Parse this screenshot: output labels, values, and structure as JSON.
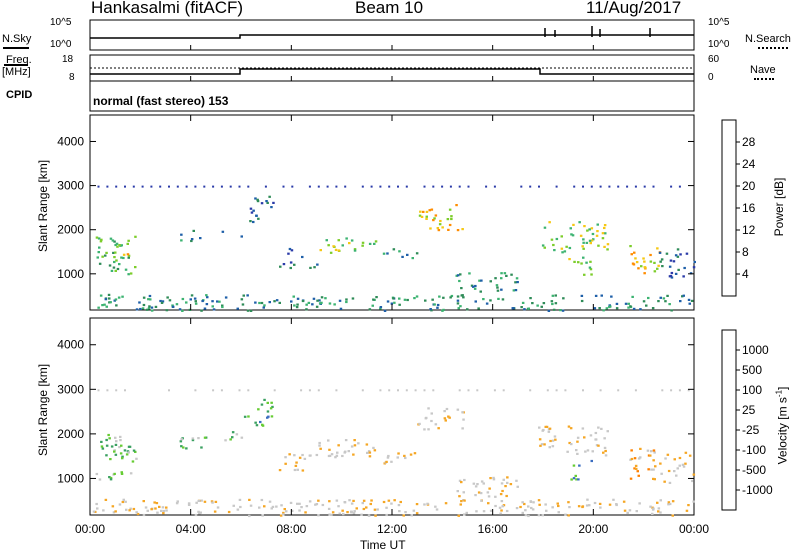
{
  "header": {
    "station": "Hankasalmi (fitACF)",
    "beam": "Beam 10",
    "date": "11/Aug/2017"
  },
  "top_panels": {
    "nsky_label": "N.Sky",
    "nsky_axis": [
      "10^5",
      "10^0"
    ],
    "nsearch_label": "N.Search",
    "nsearch_axis": [
      "10^5",
      "10^0"
    ],
    "freq_label": "Freq.",
    "freq_unit": "[MHz]",
    "freq_axis": [
      "18",
      "8"
    ],
    "nave_label": "Nave",
    "nave_axis": [
      "60",
      "0"
    ],
    "cpid_label": "CPID",
    "cpid_text": "normal (fast stereo) 153"
  },
  "chart_data": [
    {
      "type": "heatmap",
      "title": "",
      "xlabel": "Time UT",
      "ylabel": "Slant Range [km]",
      "x_ticks": [
        "00:00",
        "04:00",
        "08:00",
        "12:00",
        "16:00",
        "20:00",
        "00:00"
      ],
      "xlim_hours": [
        0,
        24
      ],
      "ylim": [
        180,
        4600
      ],
      "y_ticks": [
        1000,
        2000,
        3000,
        4000
      ],
      "colorbar": {
        "label": "Power [dB]",
        "ticks": [
          "28",
          "24",
          "20",
          "16",
          "12",
          "8",
          "4"
        ],
        "colors": [
          "#ff0000",
          "#e8500a",
          "#ff8c00",
          "#f5c814",
          "#7ccd2a",
          "#3cb371",
          "#2e8b57",
          "#1e5fa8",
          "#2a3aa8",
          "#0000ff"
        ]
      },
      "regions": [
        {
          "t0": 0.2,
          "t1": 1.8,
          "r0": 1000,
          "r1": 1900,
          "level": 4
        },
        {
          "t0": 1.0,
          "t1": 1.5,
          "r0": 1450,
          "r1": 1750,
          "level": 6
        },
        {
          "t0": 3.5,
          "t1": 4.6,
          "r0": 1750,
          "r1": 2000,
          "level": 3
        },
        {
          "t0": 5.2,
          "t1": 6.0,
          "r0": 1800,
          "r1": 2000,
          "level": 3
        },
        {
          "t0": 6.1,
          "t1": 7.3,
          "r0": 2200,
          "r1": 2800,
          "level": 2
        },
        {
          "t0": 7.5,
          "t1": 9.0,
          "r0": 1150,
          "r1": 1600,
          "level": 2
        },
        {
          "t0": 9.0,
          "t1": 11.4,
          "r0": 1500,
          "r1": 1850,
          "level": 5
        },
        {
          "t0": 11.5,
          "t1": 13.0,
          "r0": 1350,
          "r1": 1600,
          "level": 3
        },
        {
          "t0": 13.0,
          "t1": 14.8,
          "r0": 2000,
          "r1": 2600,
          "level": 6
        },
        {
          "t0": 14.5,
          "t1": 17.0,
          "r0": 600,
          "r1": 1050,
          "level": 3
        },
        {
          "t0": 17.8,
          "t1": 20.6,
          "r0": 1500,
          "r1": 2200,
          "level": 5
        },
        {
          "t0": 19.0,
          "t1": 19.9,
          "r0": 1000,
          "r1": 1450,
          "level": 5
        },
        {
          "t0": 21.4,
          "t1": 22.6,
          "r0": 1000,
          "r1": 1700,
          "level": 6
        },
        {
          "t0": 22.6,
          "t1": 24.0,
          "r0": 900,
          "r1": 1600,
          "level": 2
        },
        {
          "t0": 0.0,
          "t1": 24.0,
          "r0": 180,
          "r1": 550,
          "level": 3
        }
      ]
    },
    {
      "type": "heatmap",
      "title": "",
      "xlabel": "Time UT",
      "ylabel": "Slant Range [km]",
      "x_ticks": [
        "00:00",
        "04:00",
        "08:00",
        "12:00",
        "16:00",
        "20:00",
        "00:00"
      ],
      "xlim_hours": [
        0,
        24
      ],
      "ylim": [
        180,
        4600
      ],
      "y_ticks": [
        1000,
        2000,
        3000,
        4000
      ],
      "colorbar": {
        "label": "Velocity [m s",
        "label_superscript": "-1",
        "ticks": [
          "1000",
          "500",
          "100",
          "25",
          "-25",
          "-100",
          "-500",
          "-1000"
        ],
        "colors": [
          "#1e3cc8",
          "#3a6cc0",
          "#3aa060",
          "#66cc33",
          "#c8c8c8",
          "#c8c8c8",
          "#f5a623",
          "#ff8000",
          "#ff4000",
          "#e00000"
        ]
      },
      "regions": [
        {
          "t0": 0.2,
          "t1": 1.8,
          "r0": 1000,
          "r1": 2000,
          "level": 6
        },
        {
          "t0": 3.5,
          "t1": 4.6,
          "r0": 1650,
          "r1": 2050,
          "level": 6
        },
        {
          "t0": 5.2,
          "t1": 6.0,
          "r0": 1850,
          "r1": 2100,
          "level": 6
        },
        {
          "t0": 6.1,
          "t1": 7.3,
          "r0": 2200,
          "r1": 2800,
          "level": 7
        },
        {
          "t0": 7.5,
          "t1": 9.0,
          "r0": 1200,
          "r1": 1600,
          "level": 4
        },
        {
          "t0": 9.0,
          "t1": 11.4,
          "r0": 1500,
          "r1": 1900,
          "level": 4
        },
        {
          "t0": 11.5,
          "t1": 13.0,
          "r0": 1350,
          "r1": 1600,
          "level": 4
        },
        {
          "t0": 13.0,
          "t1": 14.8,
          "r0": 2100,
          "r1": 2600,
          "level": 4
        },
        {
          "t0": 14.5,
          "t1": 17.0,
          "r0": 600,
          "r1": 1050,
          "level": 4
        },
        {
          "t0": 17.8,
          "t1": 20.6,
          "r0": 1500,
          "r1": 2200,
          "level": 4
        },
        {
          "t0": 19.0,
          "t1": 19.9,
          "r0": 1000,
          "r1": 1450,
          "level": 7
        },
        {
          "t0": 21.4,
          "t1": 22.6,
          "r0": 1000,
          "r1": 1700,
          "level": 3
        },
        {
          "t0": 22.6,
          "t1": 24.0,
          "r0": 900,
          "r1": 1600,
          "level": 4
        },
        {
          "t0": 0.0,
          "t1": 24.0,
          "r0": 180,
          "r1": 550,
          "level": 4
        }
      ]
    }
  ]
}
